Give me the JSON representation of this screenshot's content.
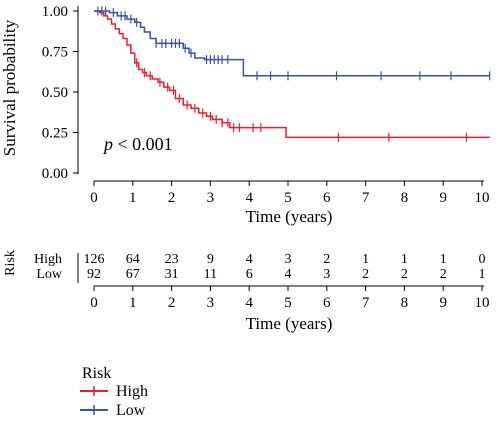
{
  "chart_data": {
    "type": "line",
    "xlabel": "Time (years)",
    "ylabel": "Survival probability",
    "xlim": [
      0,
      10.2
    ],
    "ylim": [
      0,
      1.03
    ],
    "x_ticks": [
      "0",
      "1",
      "2",
      "3",
      "4",
      "5",
      "6",
      "7",
      "8",
      "9",
      "10"
    ],
    "y_ticks": [
      "0.00",
      "0.25",
      "0.50",
      "0.75",
      "1.00"
    ],
    "annotation": {
      "p_label": "p",
      "p_rest": " < 0.001"
    },
    "series": [
      {
        "name": "High",
        "color": "#e8202a",
        "steps": [
          [
            0,
            1.0
          ],
          [
            0.15,
            0.99
          ],
          [
            0.25,
            0.97
          ],
          [
            0.35,
            0.95
          ],
          [
            0.45,
            0.92
          ],
          [
            0.55,
            0.89
          ],
          [
            0.65,
            0.86
          ],
          [
            0.75,
            0.83
          ],
          [
            0.85,
            0.79
          ],
          [
            0.95,
            0.74
          ],
          [
            1.05,
            0.68
          ],
          [
            1.15,
            0.64
          ],
          [
            1.25,
            0.62
          ],
          [
            1.35,
            0.6
          ],
          [
            1.5,
            0.58
          ],
          [
            1.65,
            0.56
          ],
          [
            1.8,
            0.53
          ],
          [
            1.95,
            0.51
          ],
          [
            2.1,
            0.46
          ],
          [
            2.3,
            0.42
          ],
          [
            2.5,
            0.4
          ],
          [
            2.7,
            0.37
          ],
          [
            2.9,
            0.35
          ],
          [
            3.05,
            0.33
          ],
          [
            3.3,
            0.31
          ],
          [
            3.5,
            0.28
          ],
          [
            4.95,
            0.22
          ],
          [
            10.2,
            0.22
          ]
        ],
        "censor": [
          1.1,
          1.3,
          1.45,
          1.7,
          1.9,
          2.05,
          2.2,
          2.4,
          2.6,
          2.8,
          3.0,
          3.15,
          3.3,
          3.45,
          3.6,
          3.75,
          4.1,
          4.3,
          6.3,
          7.6,
          9.6
        ]
      },
      {
        "name": "Low",
        "color": "#3853a4",
        "steps": [
          [
            0,
            1.0
          ],
          [
            0.4,
            0.99
          ],
          [
            0.6,
            0.97
          ],
          [
            0.85,
            0.95
          ],
          [
            1.05,
            0.93
          ],
          [
            1.2,
            0.9
          ],
          [
            1.3,
            0.87
          ],
          [
            1.45,
            0.83
          ],
          [
            1.6,
            0.8
          ],
          [
            2.3,
            0.77
          ],
          [
            2.45,
            0.74
          ],
          [
            2.6,
            0.71
          ],
          [
            2.85,
            0.7
          ],
          [
            3.85,
            0.6
          ],
          [
            10.2,
            0.6
          ]
        ],
        "censor": [
          0.1,
          0.2,
          0.3,
          0.5,
          0.7,
          0.8,
          0.95,
          1.1,
          1.6,
          1.75,
          1.85,
          2.0,
          2.1,
          2.2,
          2.35,
          2.5,
          2.9,
          3.0,
          3.1,
          3.2,
          3.3,
          3.45,
          4.2,
          4.55,
          5.0,
          6.25,
          7.4,
          8.4,
          9.2,
          10.2
        ]
      }
    ],
    "risk_table": {
      "title": "Risk",
      "rows": [
        {
          "label": "High",
          "color": "#e8202a",
          "values": [
            "126",
            "64",
            "23",
            "9",
            "4",
            "3",
            "2",
            "1",
            "1",
            "1",
            "0"
          ]
        },
        {
          "label": "Low",
          "color": "#3853a4",
          "values": [
            "92",
            "67",
            "31",
            "11",
            "6",
            "4",
            "3",
            "2",
            "2",
            "2",
            "1"
          ]
        }
      ],
      "x_ticks": [
        "0",
        "1",
        "2",
        "3",
        "4",
        "5",
        "6",
        "7",
        "8",
        "9",
        "10"
      ],
      "xlabel": "Time (years)"
    },
    "legend": {
      "title": "Risk",
      "placement": "bottom-left",
      "items": [
        {
          "label": "High",
          "color": "#e8202a"
        },
        {
          "label": "Low",
          "color": "#3853a4"
        }
      ]
    }
  }
}
